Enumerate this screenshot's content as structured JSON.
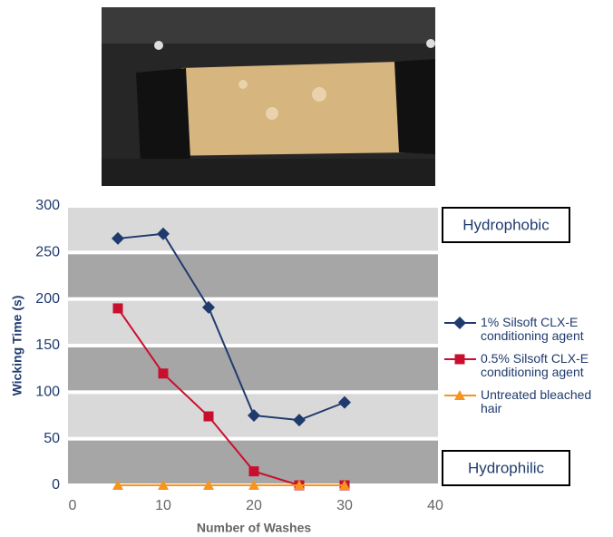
{
  "chart_data": {
    "type": "line",
    "x_label": "Number of Washes",
    "y_label": "Wicking Time (s)",
    "x": [
      5,
      10,
      15,
      20,
      25,
      30
    ],
    "series": [
      {
        "name": "1% Silsoft CLX-E conditioning agent",
        "color": "#1f3b6e",
        "marker": "diamond",
        "values": [
          265,
          270,
          191,
          75,
          70,
          89
        ]
      },
      {
        "name": "0.5% Silsoft CLX-E conditioning agent",
        "color": "#c8102e",
        "marker": "square",
        "values": [
          190,
          120,
          74,
          15,
          0,
          0
        ]
      },
      {
        "name": "Untreated bleached hair",
        "color": "#f7941d",
        "marker": "triangle",
        "values": [
          0,
          0,
          0,
          0,
          0,
          0
        ]
      }
    ],
    "xlim": [
      0,
      40
    ],
    "xticks": [
      0,
      10,
      20,
      30,
      40
    ],
    "ylim": [
      0,
      300
    ],
    "yticks": [
      0,
      50,
      100,
      150,
      200,
      250,
      300
    ],
    "band_colors": [
      "#a6a6a6",
      "#d9d9d9"
    ],
    "annotations": [
      "Hydrophobic",
      "Hydrophilic"
    ],
    "legend": "right"
  }
}
